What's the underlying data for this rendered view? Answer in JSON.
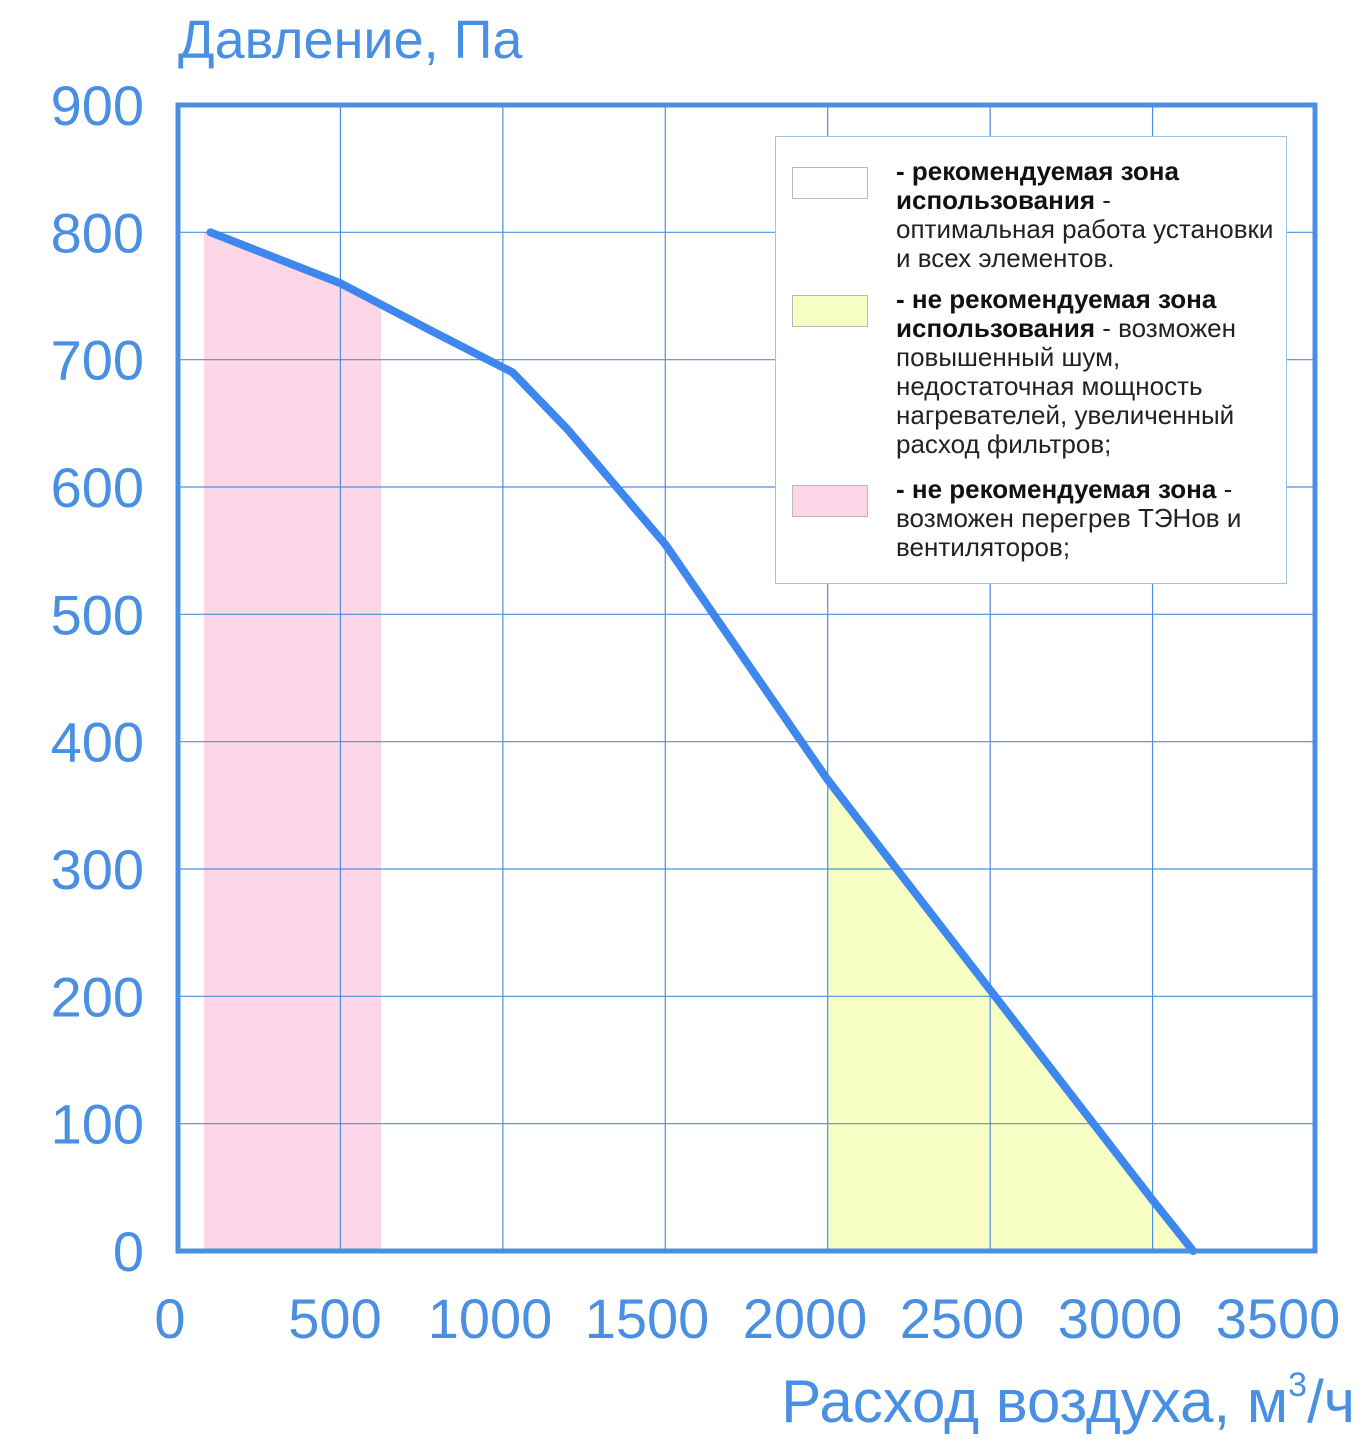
{
  "colors": {
    "axis": "#4a90e2",
    "grid": "#4a90e2",
    "curve": "#3d87ef",
    "pink_zone": "#fdd6e8",
    "yellow_zone": "#f8ffc4",
    "white_zone": "#ffffff"
  },
  "chart_data": {
    "type": "line",
    "ylabel": "Давление, Па",
    "xlabel_main": "Расход воздуха, м",
    "xlabel_sup": "3",
    "xlabel_tail": "/ч",
    "xlim": [
      0,
      3500
    ],
    "ylim": [
      0,
      900
    ],
    "xticks": [
      "0",
      "500",
      "1000",
      "1500",
      "2000",
      "2500",
      "3000",
      "3500"
    ],
    "yticks": [
      "0",
      "100",
      "200",
      "300",
      "400",
      "500",
      "600",
      "700",
      "800",
      "900"
    ],
    "grid": true,
    "series": [
      {
        "x": [
          100,
          300,
          500,
          800,
          1030,
          1200,
          1500,
          2000,
          2500,
          3000,
          3125
        ],
        "y": [
          800,
          780,
          760,
          720,
          690,
          645,
          555,
          370,
          205,
          40,
          0
        ]
      }
    ],
    "zones": [
      {
        "type": "not_recommended_overheat",
        "x_range": [
          80,
          625
        ]
      },
      {
        "type": "not_recommended_noise",
        "x_range": [
          2000,
          3125
        ]
      }
    ],
    "legend": {
      "position": "top-right",
      "items": [
        {
          "bold": "- рекомендуемая зона использования",
          "text": " - оптимальная работа установки и всех элементов.",
          "swatch": "white"
        },
        {
          "bold": "- не рекомендуемая зона использования",
          "text": " - возможен повышенный шум, недостаточная мощность нагревателей, увеличенный расход фильтров;",
          "swatch": "yellow"
        },
        {
          "bold": "- не рекомендуемая зона",
          "text": " - возможен перегрев ТЭНов и вентиляторов;",
          "swatch": "pink"
        }
      ]
    }
  }
}
